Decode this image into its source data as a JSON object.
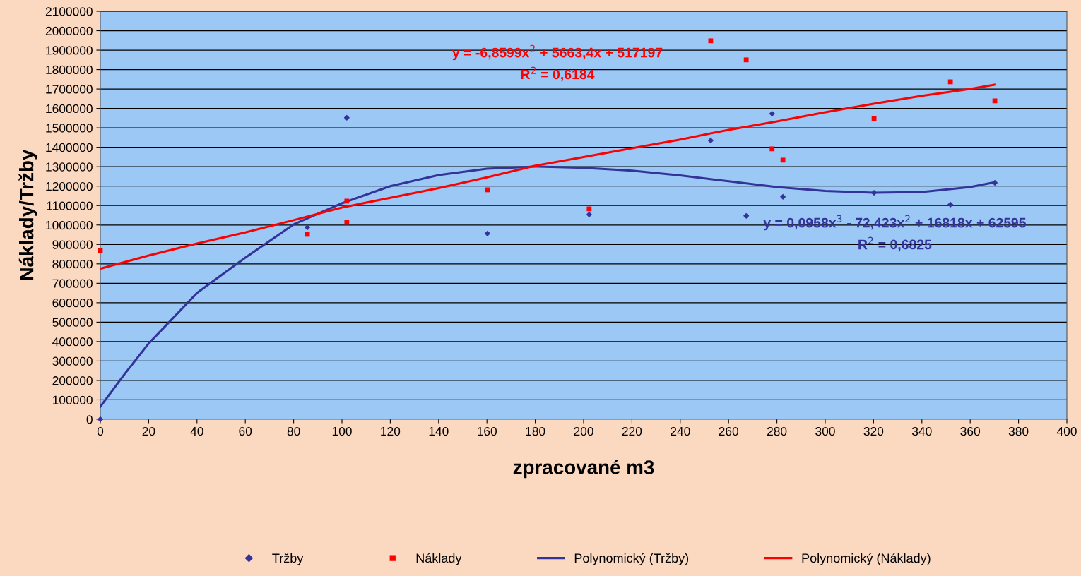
{
  "chart_data": {
    "type": "scatter",
    "xlabel": "zpracované m3",
    "ylabel": "Náklady/Tržby",
    "xlim": [
      0,
      400
    ],
    "xticks": [
      0,
      20,
      40,
      60,
      80,
      100,
      120,
      140,
      160,
      180,
      200,
      220,
      240,
      260,
      280,
      300,
      320,
      340,
      360,
      380,
      400
    ],
    "ylim": [
      0,
      2100000
    ],
    "yticks": [
      0,
      100000,
      200000,
      300000,
      400000,
      500000,
      600000,
      700000,
      800000,
      900000,
      1000000,
      1100000,
      1200000,
      1300000,
      1400000,
      1500000,
      1600000,
      1700000,
      1800000,
      1900000,
      2000000,
      2100000
    ],
    "grid": "y",
    "legend": "bottom",
    "series": [
      {
        "name": "Tržby",
        "marker": "diamond",
        "color": "#333399",
        "x": [
          0,
          85.7,
          102,
          160.2,
          202.3,
          252.6,
          267.3,
          278,
          282.5,
          320.2,
          351.8,
          370.2
        ],
        "values": [
          0,
          988000,
          1552000,
          956000,
          1054000,
          1435000,
          1047000,
          1573000,
          1145000,
          1166000,
          1105000,
          1217000
        ]
      },
      {
        "name": "Náklady",
        "marker": "square",
        "color": "#ff0000",
        "x": [
          0,
          85.7,
          102,
          102,
          160.2,
          202.3,
          252.6,
          267.3,
          278,
          282.5,
          320.2,
          351.8,
          370.2
        ],
        "values": [
          868000,
          952000,
          1123000,
          1014000,
          1181000,
          1083000,
          1948000,
          1850000,
          1392000,
          1334000,
          1548000,
          1737000,
          1639000
        ]
      },
      {
        "name": "Polynomický (Tržby)",
        "type": "line",
        "color": "#333399",
        "x": [
          0,
          10,
          20,
          40,
          60,
          80,
          100,
          120,
          140,
          160,
          180,
          200,
          220,
          240,
          260,
          280,
          300,
          320,
          340,
          360,
          370
        ],
        "values": [
          65000,
          232000,
          390000,
          650000,
          832000,
          1003000,
          1112000,
          1200000,
          1257000,
          1290000,
          1301000,
          1294000,
          1280000,
          1255000,
          1225000,
          1195000,
          1175000,
          1166000,
          1170000,
          1195000,
          1220000
        ]
      },
      {
        "name": "Polynomický (Náklady)",
        "type": "line",
        "color": "#ff0000",
        "x": [
          0,
          20,
          40,
          60,
          80,
          100,
          120,
          140,
          160,
          180,
          200,
          220,
          240,
          260,
          280,
          300,
          320,
          340,
          360,
          370
        ],
        "values": [
          775000,
          843000,
          905000,
          962000,
          1025000,
          1090000,
          1140000,
          1190000,
          1245000,
          1305000,
          1350000,
          1395000,
          1440000,
          1490000,
          1533000,
          1580000,
          1624000,
          1665000,
          1700000,
          1722000
        ]
      }
    ],
    "annotations": [
      "y = 0,0958x$^{3}$ - 72,423x$^{2}$ + 16818x + 62595\nR$^{2}$ = 0,6825",
      "y = -6,8599x$^{2}$ + 5663,4x + 517197\nR$^{2}$ = 0,6184"
    ]
  }
}
